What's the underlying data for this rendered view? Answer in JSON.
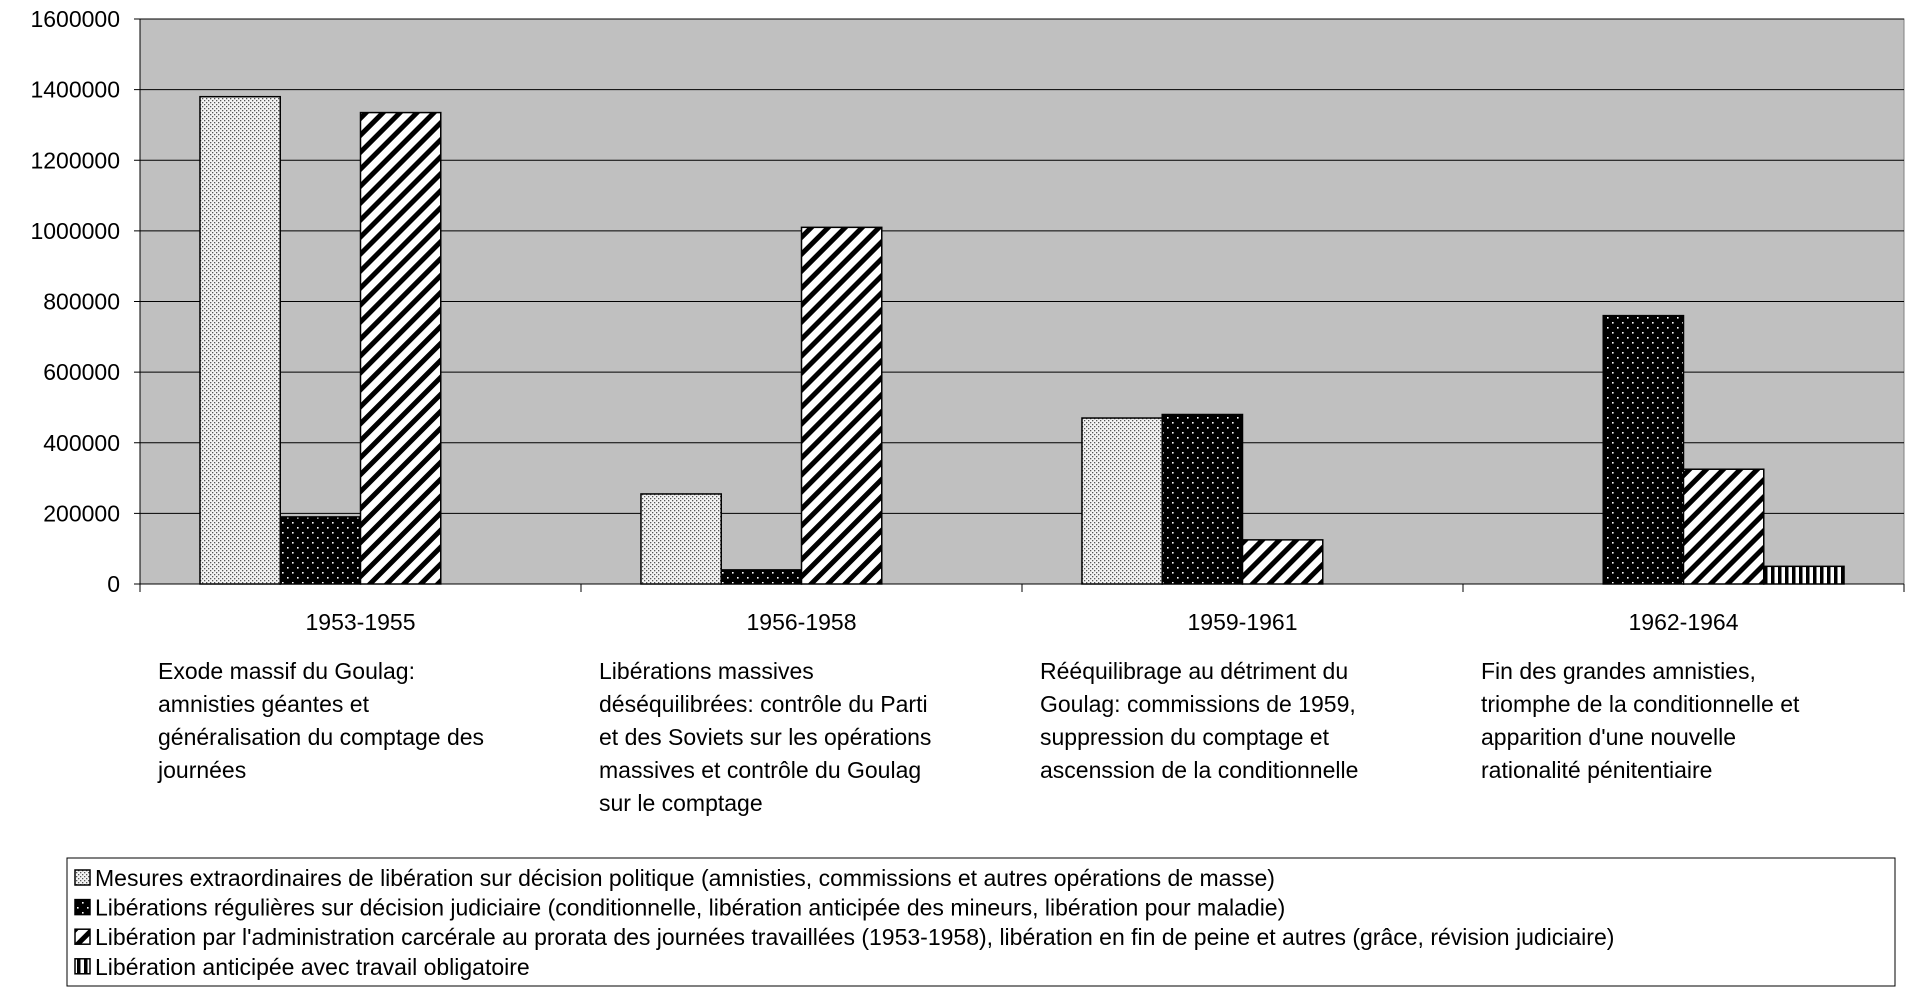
{
  "chart_data": {
    "type": "bar",
    "categories": [
      "1953-1955",
      "1956-1958",
      "1959-1961",
      "1962-1964"
    ],
    "descriptions": [
      [
        "Exode massif du Goulag:",
        "amnisties géantes et",
        "généralisation du comptage des",
        "journées"
      ],
      [
        "Libérations massives",
        "déséquilibrées: contrôle du Parti",
        "et des Soviets sur les opérations",
        "massives et contrôle du Goulag",
        "sur le comptage"
      ],
      [
        "Rééquilibrage au détriment du",
        "Goulag: commissions de 1959,",
        "suppression du comptage et",
        "ascenssion de la conditionnelle"
      ],
      [
        "Fin des grandes amnisties,",
        "triomphe de la conditionnelle et",
        "apparition d'une nouvelle",
        "rationalité pénitentiaire"
      ]
    ],
    "series": [
      {
        "name": "Mesures extraordinaires de libération sur décision politique (amnisties, commissions et autres opérations de masse)",
        "color": "#f0f0f0",
        "pattern": "light-dots",
        "values": [
          1380000,
          255000,
          470000,
          null
        ]
      },
      {
        "name": "Libérations régulières sur décision judiciaire (conditionnelle, libération anticipée des mineurs, libération pour maladie)",
        "color": "#000000",
        "pattern": "dark-dots",
        "values": [
          190000,
          40000,
          480000,
          760000
        ]
      },
      {
        "name": "Libération par l'administration carcérale au prorata des journées travaillées (1953-1958), libération en fin de peine et autres (grâce, révision judiciaire)",
        "color": "#ffffff",
        "pattern": "diagonal",
        "values": [
          1335000,
          1010000,
          125000,
          325000
        ]
      },
      {
        "name": "Libération anticipée avec travail obligatoire",
        "color": "#ffffff",
        "pattern": "vertical",
        "values": [
          null,
          null,
          null,
          50000
        ]
      }
    ],
    "ylim": [
      0,
      1600000
    ],
    "yticks": [
      0,
      200000,
      400000,
      600000,
      800000,
      1000000,
      1200000,
      1400000,
      1600000
    ],
    "grid": true,
    "plot_background": "#c0c0c0",
    "legend": "bottom"
  }
}
